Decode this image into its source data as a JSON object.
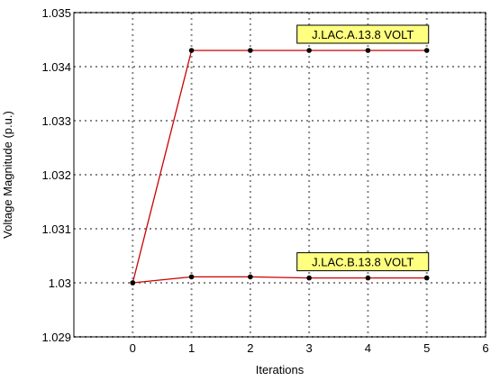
{
  "chart_data": {
    "type": "line",
    "title": "",
    "xlabel": "Iterations",
    "ylabel": "Voltage Magnitude (p.u.)",
    "xlim": [
      -1,
      6
    ],
    "ylim": [
      1.029,
      1.035
    ],
    "xticks": [
      0,
      1,
      2,
      3,
      4,
      5,
      6
    ],
    "xtick_labels": [
      "0",
      "1",
      "2",
      "3",
      "4",
      "5",
      "6"
    ],
    "yticks": [
      1.029,
      1.03,
      1.031,
      1.032,
      1.033,
      1.034,
      1.035
    ],
    "ytick_labels": [
      "1.029",
      "1.03",
      "1.031",
      "1.032",
      "1.033",
      "1.034",
      "1.035"
    ],
    "grid": true,
    "series": [
      {
        "name": "J.LAC.A.13.8 VOLT",
        "x": [
          0,
          1,
          2,
          3,
          4,
          5
        ],
        "values": [
          1.03,
          1.0343,
          1.0343,
          1.0343,
          1.0343,
          1.0343
        ]
      },
      {
        "name": "J.LAC.B.13.8 VOLT",
        "x": [
          0,
          1,
          2,
          3,
          4,
          5
        ],
        "values": [
          1.03,
          1.03011,
          1.03011,
          1.03009,
          1.03009,
          1.03009
        ]
      }
    ],
    "line_color": "#cc0000",
    "marker_color": "#000000",
    "label_box_color": "#ffff80"
  }
}
